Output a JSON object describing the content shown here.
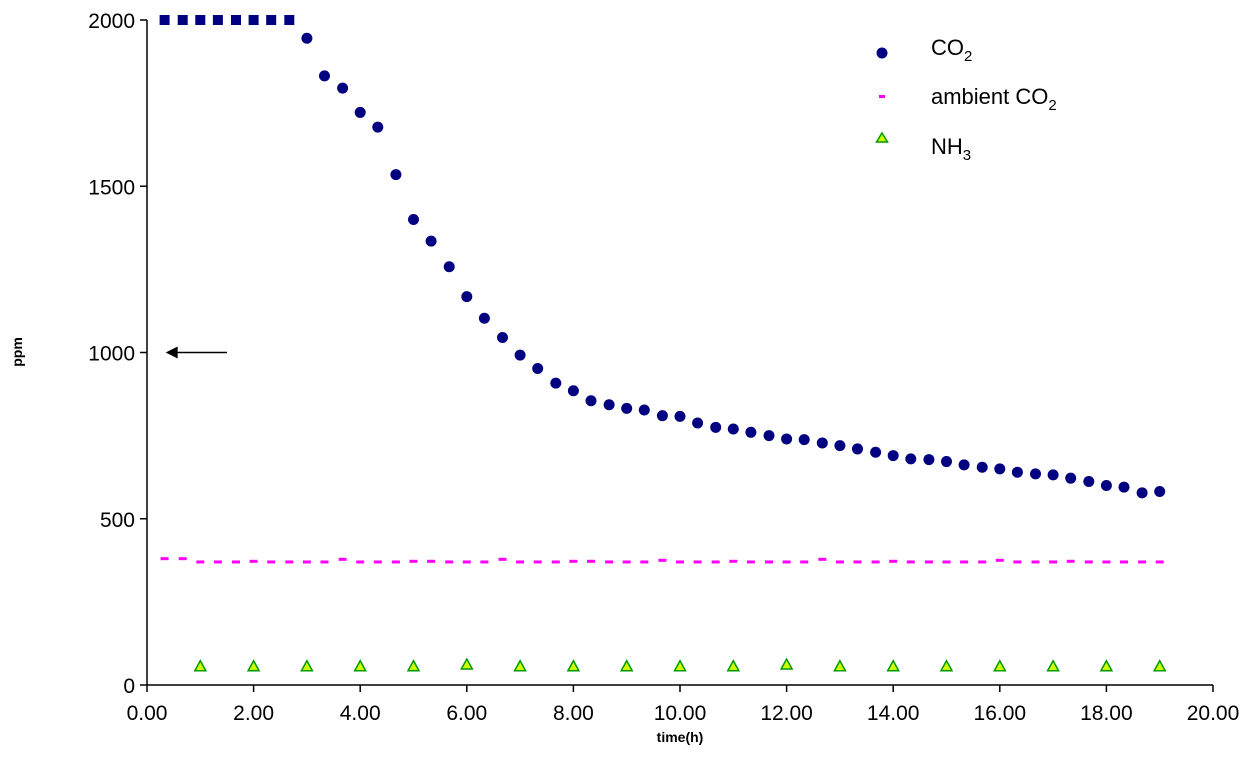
{
  "chart_data": {
    "type": "scatter",
    "xlabel": "time(h)",
    "ylabel": "ppm",
    "xlim": [
      0,
      20
    ],
    "ylim": [
      0,
      2000
    ],
    "x_ticks": [
      "0.00",
      "2.00",
      "4.00",
      "6.00",
      "8.00",
      "10.00",
      "12.00",
      "14.00",
      "16.00",
      "18.00",
      "20.00"
    ],
    "y_ticks": [
      "0",
      "500",
      "1000",
      "1500",
      "2000"
    ],
    "grid": false,
    "legend_position": "top-right",
    "series": [
      {
        "name": "CO",
        "name_sub": "2",
        "marker": "circle",
        "color": "#000080",
        "points": [
          [
            3.0,
            1945
          ],
          [
            3.33,
            1832
          ],
          [
            3.67,
            1795
          ],
          [
            4.0,
            1722
          ],
          [
            4.33,
            1678
          ],
          [
            4.67,
            1535
          ],
          [
            5.0,
            1400
          ],
          [
            5.33,
            1335
          ],
          [
            5.67,
            1258
          ],
          [
            6.0,
            1168
          ],
          [
            6.33,
            1103
          ],
          [
            6.67,
            1045
          ],
          [
            7.0,
            992
          ],
          [
            7.33,
            952
          ],
          [
            7.67,
            908
          ],
          [
            8.0,
            885
          ],
          [
            8.33,
            855
          ],
          [
            8.67,
            843
          ],
          [
            9.0,
            832
          ],
          [
            9.33,
            827
          ],
          [
            9.67,
            810
          ],
          [
            10.0,
            808
          ],
          [
            10.33,
            788
          ],
          [
            10.67,
            775
          ],
          [
            11.0,
            770
          ],
          [
            11.33,
            760
          ],
          [
            11.67,
            750
          ],
          [
            12.0,
            740
          ],
          [
            12.33,
            738
          ],
          [
            12.67,
            728
          ],
          [
            13.0,
            720
          ],
          [
            13.33,
            710
          ],
          [
            13.67,
            700
          ],
          [
            14.0,
            690
          ],
          [
            14.33,
            680
          ],
          [
            14.67,
            678
          ],
          [
            15.0,
            672
          ],
          [
            15.33,
            662
          ],
          [
            15.67,
            655
          ],
          [
            16.0,
            650
          ],
          [
            16.33,
            640
          ],
          [
            16.67,
            635
          ],
          [
            17.0,
            632
          ],
          [
            17.33,
            622
          ],
          [
            17.67,
            612
          ],
          [
            18.0,
            600
          ],
          [
            18.33,
            595
          ],
          [
            18.67,
            578
          ],
          [
            19.0,
            582
          ]
        ]
      },
      {
        "name": "ambient CO",
        "name_sub": "2",
        "marker": "dash",
        "color": "#ff00ff",
        "points": [
          [
            0.33,
            380
          ],
          [
            0.67,
            380
          ],
          [
            1.0,
            370
          ],
          [
            1.33,
            370
          ],
          [
            1.67,
            370
          ],
          [
            2.0,
            372
          ],
          [
            2.33,
            370
          ],
          [
            2.67,
            370
          ],
          [
            3.0,
            370
          ],
          [
            3.33,
            370
          ],
          [
            3.67,
            378
          ],
          [
            4.0,
            370
          ],
          [
            4.33,
            370
          ],
          [
            4.67,
            370
          ],
          [
            5.0,
            372
          ],
          [
            5.33,
            372
          ],
          [
            5.67,
            370
          ],
          [
            6.0,
            370
          ],
          [
            6.33,
            370
          ],
          [
            6.67,
            378
          ],
          [
            7.0,
            370
          ],
          [
            7.33,
            370
          ],
          [
            7.67,
            370
          ],
          [
            8.0,
            372
          ],
          [
            8.33,
            372
          ],
          [
            8.67,
            370
          ],
          [
            9.0,
            370
          ],
          [
            9.33,
            370
          ],
          [
            9.67,
            375
          ],
          [
            10.0,
            370
          ],
          [
            10.33,
            370
          ],
          [
            10.67,
            370
          ],
          [
            11.0,
            372
          ],
          [
            11.33,
            370
          ],
          [
            11.67,
            370
          ],
          [
            12.0,
            370
          ],
          [
            12.33,
            370
          ],
          [
            12.67,
            378
          ],
          [
            13.0,
            370
          ],
          [
            13.33,
            370
          ],
          [
            13.67,
            370
          ],
          [
            14.0,
            372
          ],
          [
            14.33,
            370
          ],
          [
            14.67,
            370
          ],
          [
            15.0,
            370
          ],
          [
            15.33,
            370
          ],
          [
            15.67,
            370
          ],
          [
            16.0,
            375
          ],
          [
            16.33,
            370
          ],
          [
            16.67,
            370
          ],
          [
            17.0,
            370
          ],
          [
            17.33,
            372
          ],
          [
            17.67,
            370
          ],
          [
            18.0,
            370
          ],
          [
            18.33,
            370
          ],
          [
            18.67,
            370
          ],
          [
            19.0,
            370
          ]
        ]
      },
      {
        "name": "NH",
        "name_sub": "3",
        "marker": "triangle",
        "color": "#ccff00",
        "edge_color": "#009900",
        "points": [
          [
            1.0,
            55
          ],
          [
            2.0,
            55
          ],
          [
            3.0,
            55
          ],
          [
            4.0,
            55
          ],
          [
            5.0,
            55
          ],
          [
            6.0,
            60
          ],
          [
            7.0,
            55
          ],
          [
            8.0,
            55
          ],
          [
            9.0,
            55
          ],
          [
            10.0,
            55
          ],
          [
            11.0,
            55
          ],
          [
            12.0,
            60
          ],
          [
            13.0,
            55
          ],
          [
            14.0,
            55
          ],
          [
            15.0,
            55
          ],
          [
            16.0,
            55
          ],
          [
            17.0,
            55
          ],
          [
            18.0,
            55
          ],
          [
            19.0,
            55
          ]
        ]
      },
      {
        "marker": "square",
        "color": "#000080",
        "points": [
          [
            0.33,
            2000
          ],
          [
            0.67,
            2000
          ],
          [
            1.0,
            2000
          ],
          [
            1.33,
            2000
          ],
          [
            1.67,
            2000
          ],
          [
            2.0,
            2000
          ],
          [
            2.33,
            2000
          ],
          [
            2.67,
            2000
          ]
        ]
      }
    ],
    "annotations": [
      {
        "type": "arrow",
        "direction": "left",
        "from": [
          1.5,
          1000
        ],
        "to": [
          0.35,
          1000
        ]
      }
    ]
  }
}
